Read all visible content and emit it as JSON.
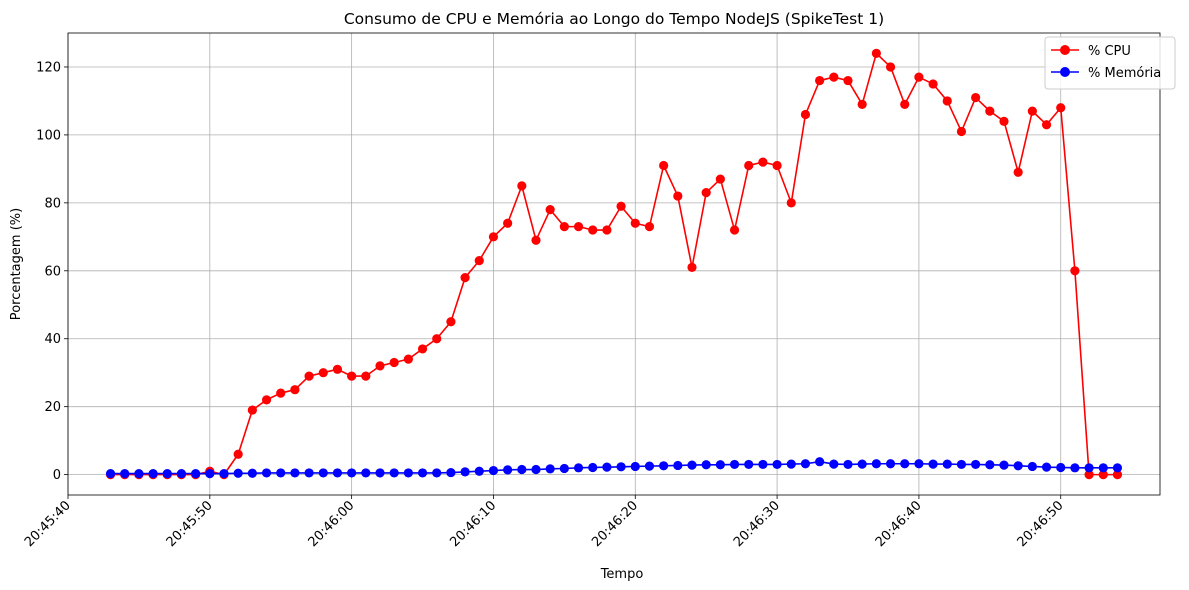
{
  "chart_data": {
    "type": "line",
    "title": "Consumo de CPU e Memória ao Longo do Tempo NodeJS (SpikeTest 1)",
    "xlabel": "Tempo",
    "ylabel": "Porcentagem (%)",
    "x_ticks": [
      "20:45:40",
      "20:45:50",
      "20:46:00",
      "20:46:10",
      "20:46:20",
      "20:46:30",
      "20:46:40",
      "20:46:50"
    ],
    "y_ticks": [
      "0",
      "20",
      "40",
      "60",
      "80",
      "100",
      "120"
    ],
    "xlim": [
      "20:45:40",
      "20:46:57"
    ],
    "ylim": [
      -6,
      130
    ],
    "grid": true,
    "legend_position": "top-right",
    "x": [
      "20:45:43",
      "20:45:44",
      "20:45:45",
      "20:45:46",
      "20:45:47",
      "20:45:48",
      "20:45:49",
      "20:45:50",
      "20:45:51",
      "20:45:52",
      "20:45:53",
      "20:45:54",
      "20:45:55",
      "20:45:56",
      "20:45:57",
      "20:45:58",
      "20:45:59",
      "20:46:00",
      "20:46:01",
      "20:46:02",
      "20:46:03",
      "20:46:04",
      "20:46:05",
      "20:46:06",
      "20:46:07",
      "20:46:08",
      "20:46:09",
      "20:46:10",
      "20:46:11",
      "20:46:12",
      "20:46:13",
      "20:46:14",
      "20:46:15",
      "20:46:16",
      "20:46:17",
      "20:46:18",
      "20:46:19",
      "20:46:20",
      "20:46:21",
      "20:46:22",
      "20:46:23",
      "20:46:24",
      "20:46:25",
      "20:46:26",
      "20:46:27",
      "20:46:28",
      "20:46:29",
      "20:46:30",
      "20:46:31",
      "20:46:32",
      "20:46:33",
      "20:46:34",
      "20:46:35",
      "20:46:36",
      "20:46:37",
      "20:46:38",
      "20:46:39",
      "20:46:40",
      "20:46:41",
      "20:46:42",
      "20:46:43",
      "20:46:44",
      "20:46:45",
      "20:46:46",
      "20:46:47",
      "20:46:48",
      "20:46:49",
      "20:46:50",
      "20:46:51",
      "20:46:52",
      "20:46:53",
      "20:46:54"
    ],
    "series": [
      {
        "name": "% CPU",
        "color": "#ff0000",
        "values": [
          0,
          0,
          0,
          0,
          0,
          0,
          0,
          1,
          0,
          6,
          19,
          22,
          24,
          25,
          29,
          30,
          31,
          29,
          29,
          32,
          33,
          34,
          37,
          40,
          45,
          58,
          63,
          70,
          74,
          85,
          69,
          78,
          73,
          73,
          72,
          72,
          79,
          74,
          73,
          91,
          82,
          61,
          83,
          87,
          72,
          91,
          92,
          91,
          80,
          106,
          116,
          117,
          116,
          109,
          124,
          120,
          109,
          117,
          115,
          110,
          101,
          111,
          107,
          104,
          89,
          107,
          103,
          108,
          60,
          0,
          0,
          0
        ]
      },
      {
        "name": "% Memória",
        "color": "#0000ff",
        "values": [
          0.3,
          0.3,
          0.3,
          0.3,
          0.3,
          0.3,
          0.3,
          0.3,
          0.3,
          0.4,
          0.4,
          0.5,
          0.5,
          0.5,
          0.5,
          0.5,
          0.5,
          0.5,
          0.5,
          0.5,
          0.5,
          0.5,
          0.5,
          0.5,
          0.6,
          0.8,
          1.0,
          1.2,
          1.4,
          1.5,
          1.5,
          1.7,
          1.8,
          2.0,
          2.1,
          2.2,
          2.3,
          2.4,
          2.5,
          2.6,
          2.7,
          2.8,
          2.9,
          2.9,
          3.0,
          3.0,
          3.0,
          3.0,
          3.1,
          3.2,
          3.8,
          3.1,
          3.0,
          3.1,
          3.2,
          3.2,
          3.2,
          3.2,
          3.1,
          3.1,
          3.0,
          3.0,
          2.9,
          2.8,
          2.6,
          2.4,
          2.2,
          2.1,
          2.0,
          2.0,
          2.0,
          2.0
        ]
      }
    ]
  }
}
